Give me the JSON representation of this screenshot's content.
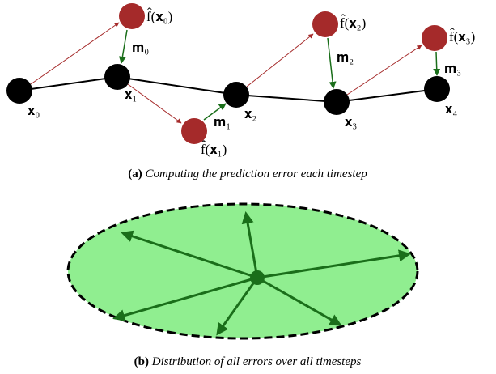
{
  "nodes": [
    {
      "label": "𝐱₀"
    },
    {
      "label": "𝐱₁"
    },
    {
      "label": "𝐱₂"
    },
    {
      "label": "𝐱₃"
    },
    {
      "label": "𝐱₄"
    }
  ],
  "predictions": [
    {
      "label": "f̂(𝐱₀)"
    },
    {
      "label": "f̂(𝐱₁)"
    },
    {
      "label": "f̂(𝐱₂)"
    },
    {
      "label": "f̂(𝐱₃)"
    }
  ],
  "errors": [
    {
      "label": "𝐦₀"
    },
    {
      "label": "𝐦₁"
    },
    {
      "label": "𝐦₂"
    },
    {
      "label": "𝐦₃"
    }
  ],
  "captions": [
    {
      "tag": "(a)",
      "text": "Computing the prediction error each timestep"
    },
    {
      "tag": "(b)",
      "text": "Distribution of all errors over all timesteps"
    }
  ]
}
